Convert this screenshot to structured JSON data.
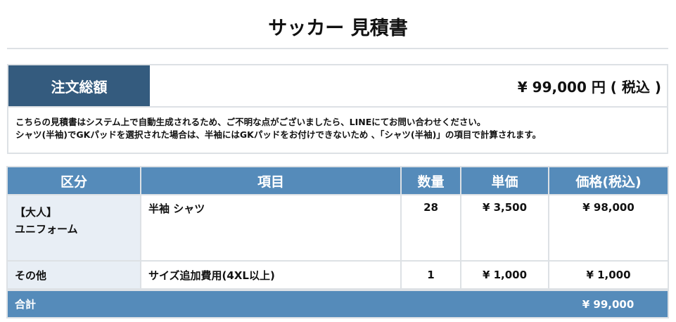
{
  "title": "サッカー 見積書",
  "summary": {
    "label": "注文総額",
    "value": "¥ 99,000 円 ( 税込 )",
    "notes": [
      "こちらの見積書はシステム上で自動生成されるため、ご不明な点がございましたら、LINEにてお問い合わせください。",
      "シャツ(半袖)でGKパッドを選択された場合は、半袖にはGKパッドをお付けできないため 、「シャツ(半袖)」の項目で計算されます。"
    ]
  },
  "table": {
    "headers": [
      "区分",
      "項目",
      "数量",
      "単価",
      "価格(税込)"
    ],
    "rows": [
      {
        "category_line1": "【大人】",
        "category_line2": "ユニフォーム",
        "item": "半袖 シャツ",
        "qty": "28",
        "unit": "¥ 3,500",
        "price": "¥ 98,000"
      },
      {
        "category_line1": "その他",
        "item": "サイズ追加費用(4XL以上)",
        "qty": "1",
        "unit": "¥ 1,000",
        "price": "¥ 1,000"
      }
    ],
    "total_label": "合計",
    "total_value": "¥ 99,000"
  },
  "colors": {
    "header_dark": "#345b7e",
    "header": "#558bba",
    "category_bg": "#e8eef5"
  }
}
